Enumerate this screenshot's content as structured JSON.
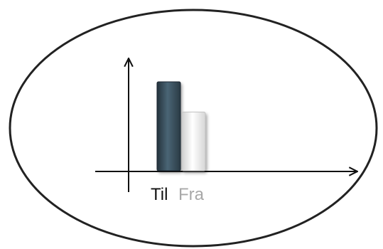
{
  "chart_data": {
    "type": "bar",
    "categories": [
      "Til",
      "Fra"
    ],
    "values": [
      100,
      66
    ],
    "colors": [
      "#3c5565",
      "#e8e8e8"
    ],
    "title": "",
    "xlabel": "",
    "ylabel": "",
    "ylim": [
      0,
      100
    ],
    "grid": false,
    "legend": "none"
  },
  "labels": {
    "til": "Til",
    "fra": "Fra"
  },
  "colors": {
    "til_label": "#111111",
    "fra_label": "#a8a8a8",
    "outline": "#222222"
  }
}
